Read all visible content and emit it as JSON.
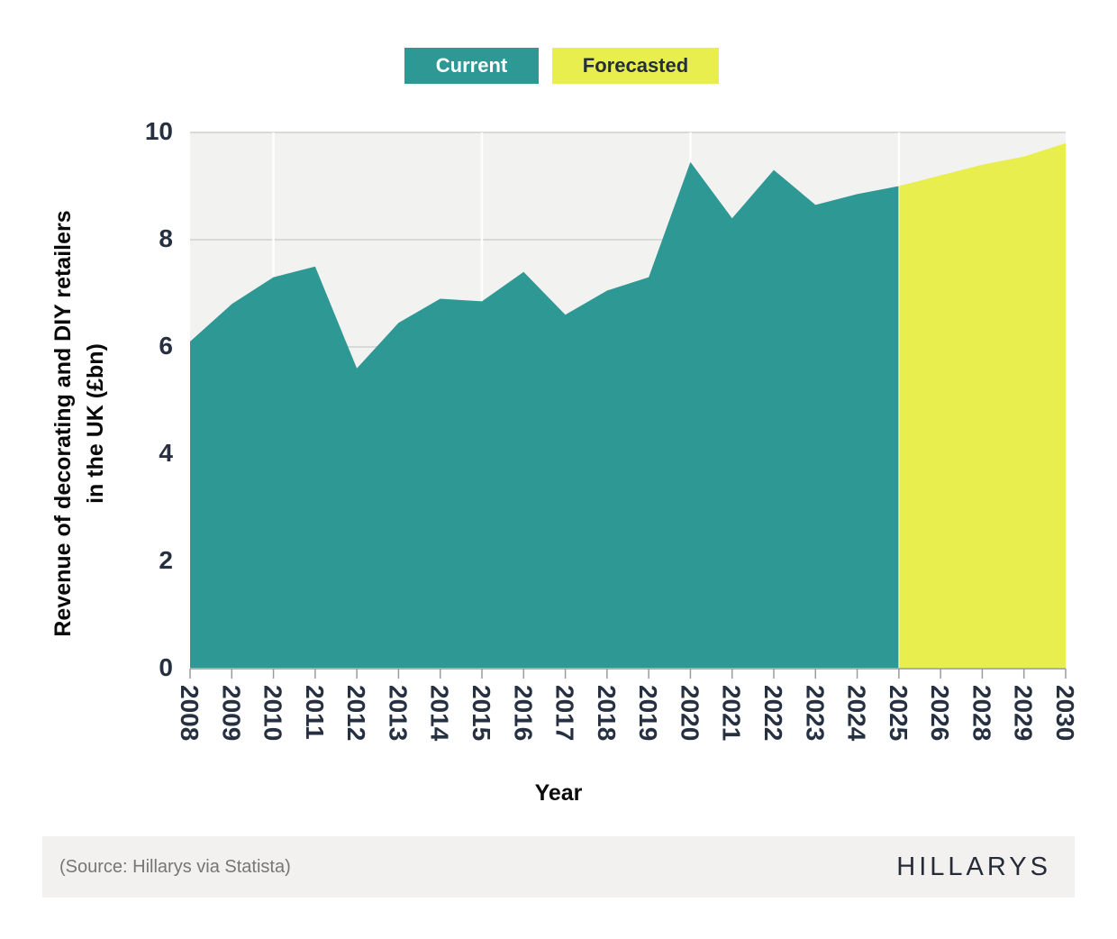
{
  "legend": {
    "current_label": "Current",
    "forecasted_label": "Forecasted"
  },
  "axes": {
    "y_title_line1": "Revenue of decorating and DIY retailers",
    "y_title_line2": "in the UK (£bn)",
    "x_title": "Year",
    "y_ticks": [
      0,
      2,
      4,
      6,
      8,
      10
    ]
  },
  "footer": {
    "source": "(Source: Hillarys via Statista)",
    "brand": "HILLARYS"
  },
  "colors": {
    "current": "#2E9894",
    "forecasted": "#E9EE4F",
    "plot_bg": "#F2F2F0",
    "h_grid": "#D9D9D7",
    "v_grid": "#FFFFFF",
    "axis_line": "#ADADAD",
    "tick_mark": "#9B9B9B",
    "tick_text": "#263040",
    "legend_current_text": "#FFFFFF",
    "legend_forecasted_text": "#242E3C",
    "footer_bg": "#F2F1EF",
    "source_text": "#767676",
    "brand_text": "#262B38"
  },
  "chart_data": {
    "type": "area",
    "title": "",
    "xlabel": "Year",
    "ylabel": "Revenue of decorating and DIY retailers in the UK (£bn)",
    "ylim": [
      0,
      10
    ],
    "grid": true,
    "legend_position": "top",
    "categories": [
      "2008",
      "2009",
      "2010",
      "2011",
      "2012",
      "2013",
      "2014",
      "2015",
      "2016",
      "2017",
      "2018",
      "2019",
      "2020",
      "2021",
      "2022",
      "2023",
      "2024",
      "2025",
      "2026",
      "2028",
      "2029",
      "2030"
    ],
    "vertical_gridlines_at": [
      "2010",
      "2015",
      "2020",
      "2025"
    ],
    "series": [
      {
        "name": "Current",
        "color": "#2E9894",
        "x": [
          "2008",
          "2009",
          "2010",
          "2011",
          "2012",
          "2013",
          "2014",
          "2015",
          "2016",
          "2017",
          "2018",
          "2019",
          "2020",
          "2021",
          "2022",
          "2023",
          "2024",
          "2025"
        ],
        "values": [
          6.1,
          6.8,
          7.3,
          7.5,
          5.6,
          6.45,
          6.9,
          6.85,
          7.4,
          6.6,
          7.05,
          7.3,
          9.45,
          8.4,
          9.3,
          8.65,
          8.85,
          9.0
        ]
      },
      {
        "name": "Forecasted",
        "color": "#E9EE4F",
        "x": [
          "2025",
          "2026",
          "2028",
          "2029",
          "2030"
        ],
        "values": [
          9.0,
          9.2,
          9.4,
          9.55,
          9.8
        ]
      }
    ]
  }
}
